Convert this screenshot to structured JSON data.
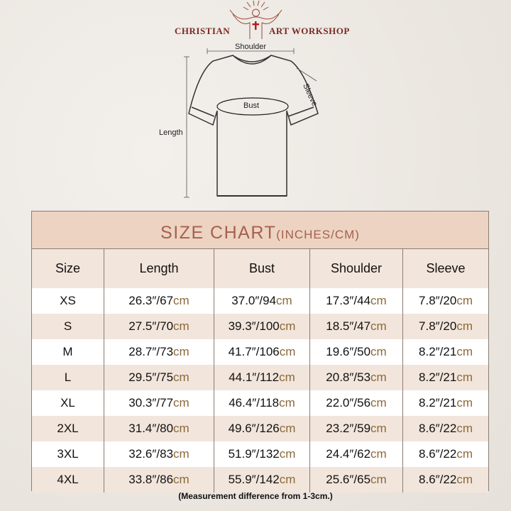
{
  "brand": {
    "left": "CHRISTIAN",
    "right": "ART WORKSHOP"
  },
  "diagram": {
    "shoulder": "Shoulder",
    "sleeve": "Sleeve",
    "bust": "Bust",
    "length": "Length"
  },
  "chart": {
    "title": "SIZE CHART",
    "unit": "(INCHES/CM)",
    "columns": [
      "Size",
      "Length",
      "Bust",
      "Shoulder",
      "Sleeve"
    ],
    "rows": [
      {
        "size": "XS",
        "length": "26.3″/67",
        "bust": "37.0″/94",
        "shoulder": "17.3″/44",
        "sleeve": "7.8″/20"
      },
      {
        "size": "S",
        "length": "27.5″/70",
        "bust": "39.3″/100",
        "shoulder": "18.5″/47",
        "sleeve": "7.8″/20"
      },
      {
        "size": "M",
        "length": "28.7″/73",
        "bust": "41.7″/106",
        "shoulder": "19.6″/50",
        "sleeve": "8.2″/21"
      },
      {
        "size": "L",
        "length": "29.5″/75",
        "bust": "44.1″/112",
        "shoulder": "20.8″/53",
        "sleeve": "8.2″/21"
      },
      {
        "size": "XL",
        "length": "30.3″/77",
        "bust": "46.4″/118",
        "shoulder": "22.0″/56",
        "sleeve": "8.2″/21"
      },
      {
        "size": "2XL",
        "length": "31.4″/80",
        "bust": "49.6″/126",
        "shoulder": "23.2″/59",
        "sleeve": "8.6″/22"
      },
      {
        "size": "3XL",
        "length": "32.6″/83",
        "bust": "51.9″/132",
        "shoulder": "24.4″/62",
        "sleeve": "8.6″/22"
      },
      {
        "size": "4XL",
        "length": "33.8″/86",
        "bust": "55.9″/142",
        "shoulder": "25.6″/65",
        "sleeve": "8.6″/22"
      }
    ],
    "unit_suffix": "cm"
  },
  "note": "(Measurement difference from 1-3cm.)",
  "colors": {
    "title_bg": "#ecd3c2",
    "title_text": "#a8604e",
    "cm": "#8b6a3a",
    "brand": "#7a2a22"
  }
}
